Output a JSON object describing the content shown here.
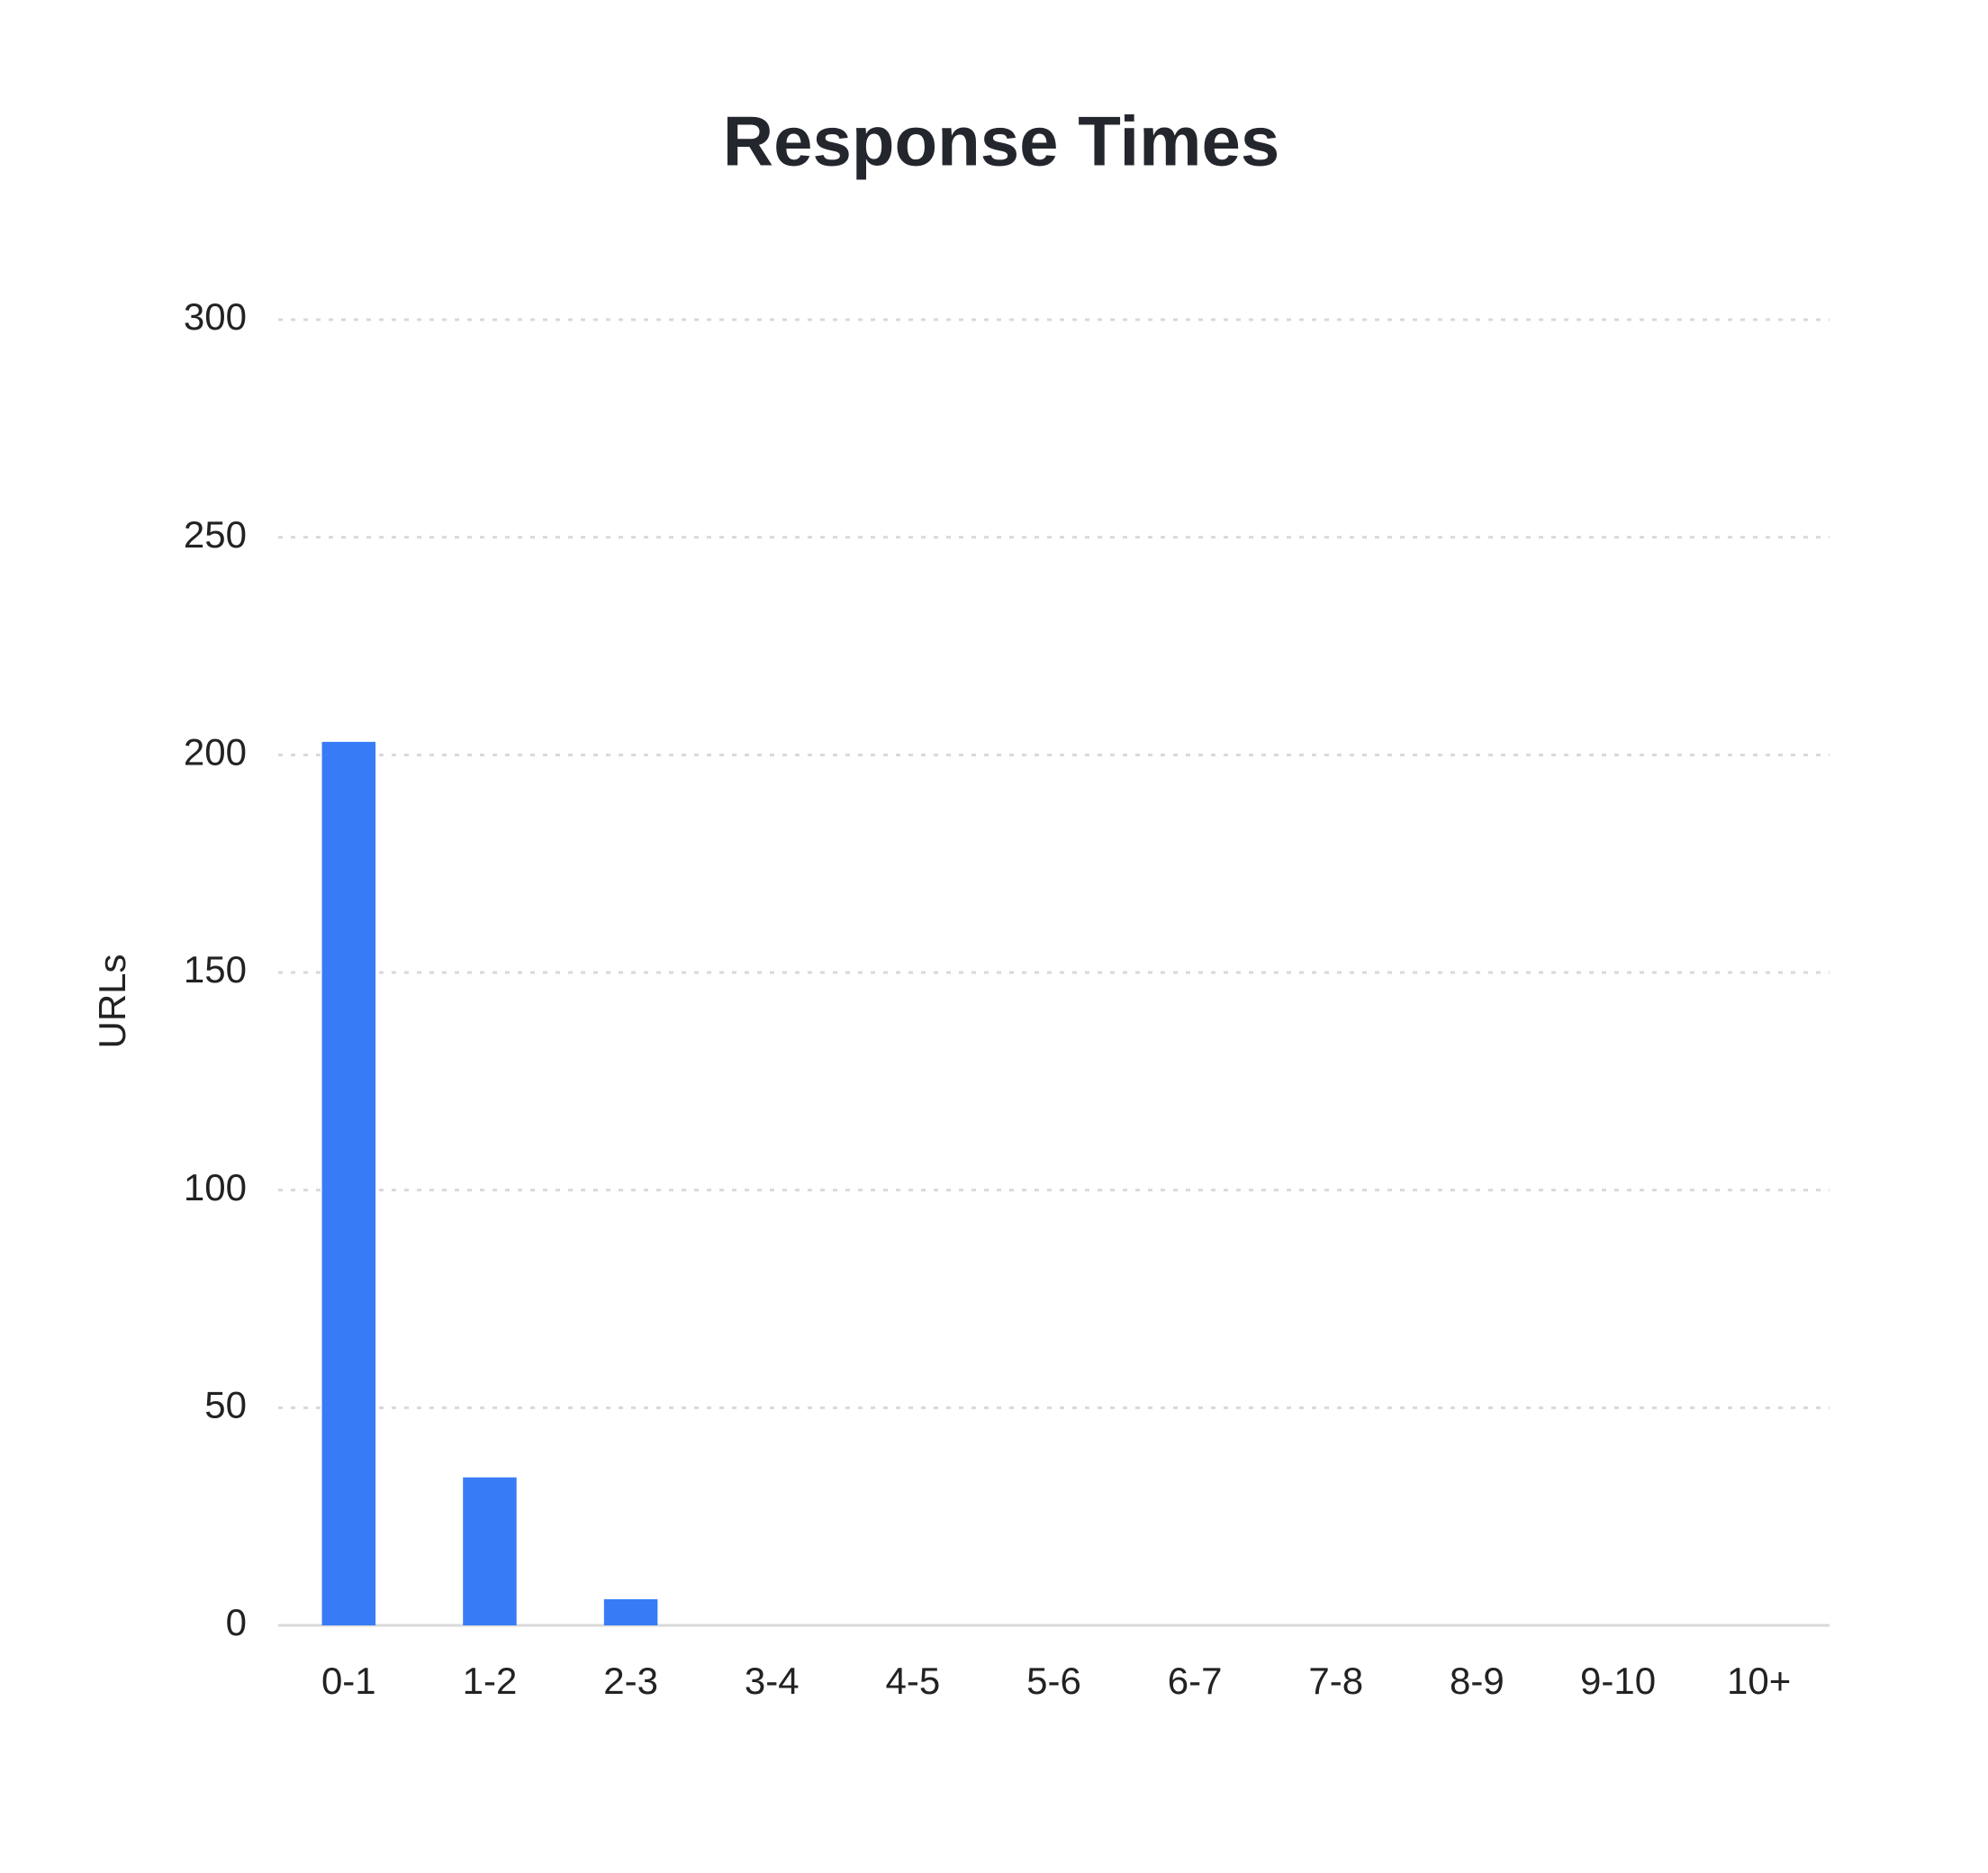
{
  "chart_data": {
    "type": "bar",
    "title": "Response Times",
    "y_label": "URLs",
    "categories": [
      "0-1",
      "1-2",
      "2-3",
      "3-4",
      "4-5",
      "5-6",
      "6-7",
      "7-8",
      "8-9",
      "9-10",
      "10+"
    ],
    "values": [
      203,
      34,
      6,
      0,
      0,
      0,
      0,
      0,
      0,
      0,
      0
    ],
    "color": "#377cf6",
    "ylim": [
      0,
      300
    ],
    "yticks": [
      0,
      50,
      100,
      150,
      200,
      250,
      300
    ],
    "grid": true
  }
}
